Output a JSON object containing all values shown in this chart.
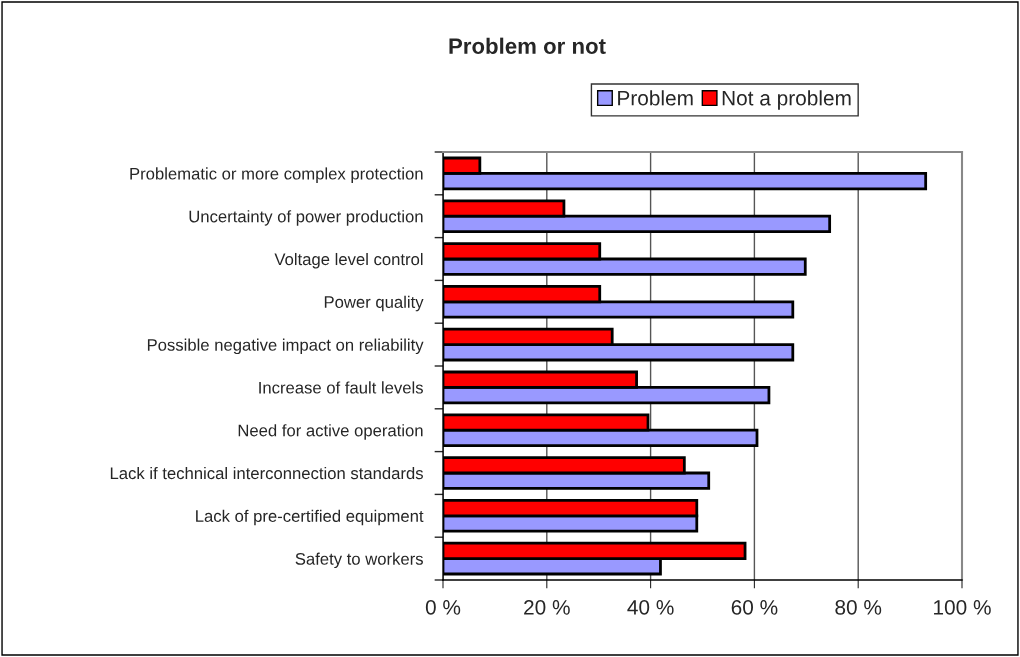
{
  "chart_data": {
    "type": "bar",
    "orientation": "horizontal",
    "title": "Problem or not",
    "categories": [
      "Problematic or more complex protection",
      "Uncertainty of power production",
      "Voltage level control",
      "Power quality",
      "Possible negative impact on reliability",
      "Increase of fault levels",
      "Need for active operation",
      "Lack if technical interconnection standards",
      "Lack of pre-certified equipment",
      "Safety to workers"
    ],
    "series": [
      {
        "name": "Problem",
        "color": "#9999ff",
        "values": [
          93.0,
          74.5,
          69.8,
          67.4,
          67.4,
          62.8,
          60.5,
          51.2,
          48.9,
          41.9
        ]
      },
      {
        "name": "Not a problem",
        "color": "#ff0000",
        "values": [
          7.1,
          23.3,
          30.2,
          30.2,
          32.6,
          37.3,
          39.5,
          46.5,
          48.9,
          58.2
        ]
      }
    ],
    "xlim": [
      0,
      100
    ],
    "xticks": [
      {
        "value": 0,
        "label": "0 %"
      },
      {
        "value": 20,
        "label": "20 %"
      },
      {
        "value": 40,
        "label": "40 %"
      },
      {
        "value": 60,
        "label": "60 %"
      },
      {
        "value": 80,
        "label": "80 %"
      },
      {
        "value": 100,
        "label": "100 %"
      }
    ],
    "grid": "x",
    "legend": "top right"
  }
}
